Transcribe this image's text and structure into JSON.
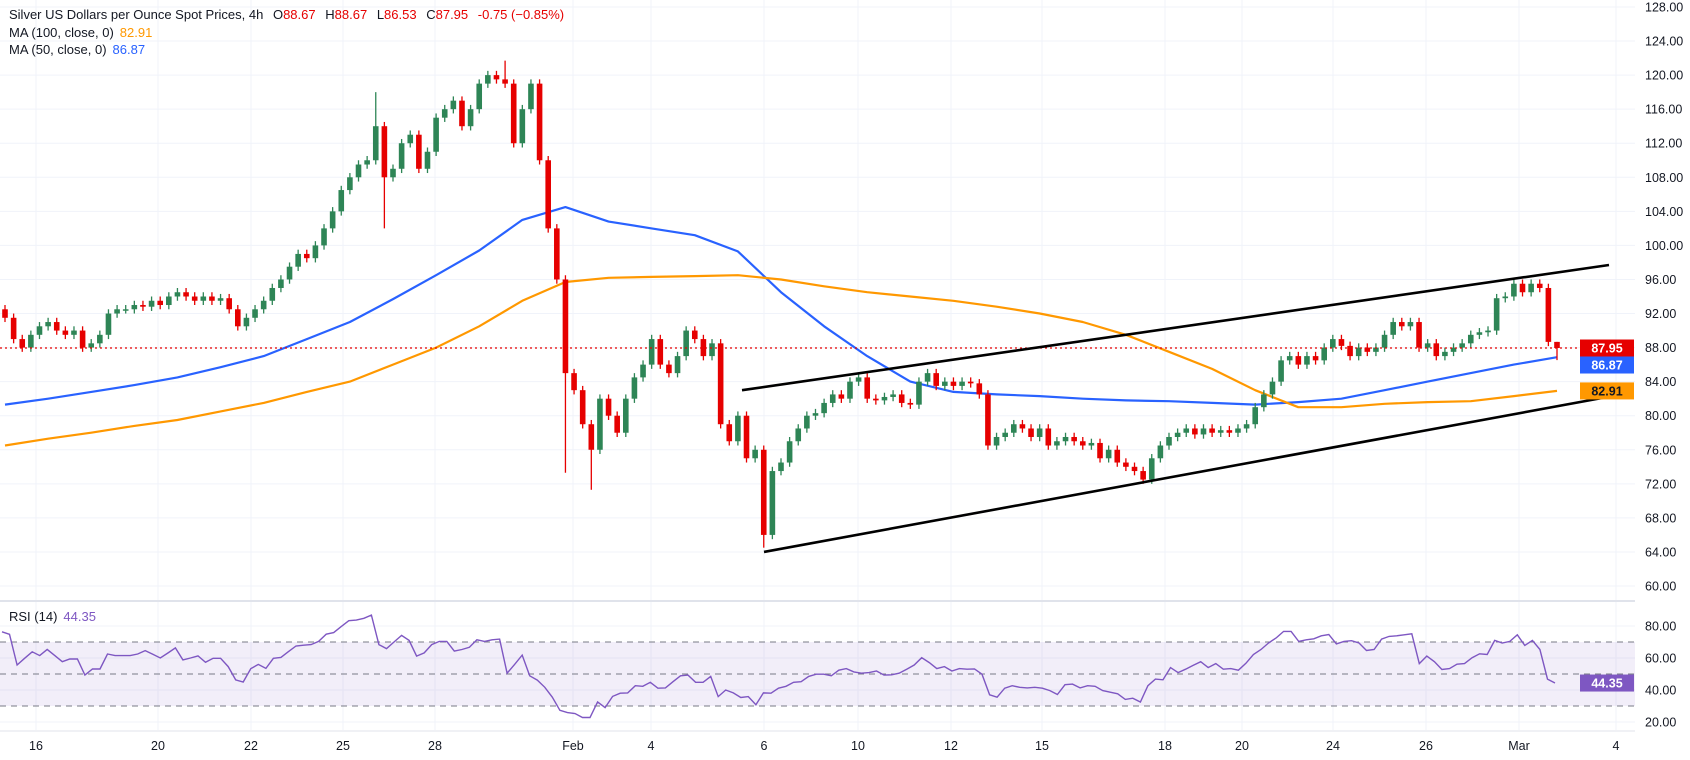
{
  "legend": {
    "title": "Silver US Dollars per Ounce Spot Prices, 4h",
    "o_label": "O",
    "o_value": "88.67",
    "h_label": "H",
    "h_value": "88.67",
    "l_label": "L",
    "l_value": "86.53",
    "c_label": "C",
    "c_value": "87.95",
    "change": "-0.75 (−0.85%)",
    "ma100_label": "MA (100, close, 0)",
    "ma100_value": "82.91",
    "ma50_label": "MA (50, close, 0)",
    "ma50_value": "86.87",
    "rsi_label": "RSI (14)",
    "rsi_value": "44.35"
  },
  "colors": {
    "up": "#2e8556",
    "down": "#e60000",
    "ma50": "#2962ff",
    "ma100": "#ff9800",
    "rsi": "#7e57c2",
    "trendline": "#000000",
    "grid": "#f0f3fa"
  },
  "chart_data": [
    {
      "type": "candlestick",
      "title": "Silver US Dollars per Ounce Spot Prices, 4h",
      "ylim": [
        60,
        128
      ],
      "y_ticks": [
        "60.00",
        "64.00",
        "68.00",
        "72.00",
        "76.00",
        "80.00",
        "84.00",
        "88.00",
        "92.00",
        "96.00",
        "100.00",
        "104.00",
        "108.00",
        "112.00",
        "116.00",
        "120.00",
        "124.00",
        "128.00"
      ],
      "x_ticks": [
        "16",
        "20",
        "22",
        "25",
        "28",
        "Feb",
        "4",
        "6",
        "10",
        "12",
        "15",
        "18",
        "20",
        "24",
        "26",
        "Mar",
        "4"
      ],
      "grid": true,
      "first_open": 92.5,
      "closes": [
        91.5,
        89,
        88,
        89.5,
        90.5,
        91,
        90,
        89.5,
        90,
        88,
        88.5,
        89.5,
        92,
        92.5,
        92.5,
        93,
        92.8,
        93.5,
        93,
        94,
        94.5,
        94,
        93.5,
        94,
        93.5,
        93.8,
        92.5,
        90.5,
        91.5,
        92.5,
        93.5,
        95,
        96,
        97.5,
        99,
        98.5,
        100,
        102,
        104,
        106.5,
        108,
        109.5,
        110,
        114,
        108,
        109,
        112,
        113,
        109,
        111,
        115,
        116,
        117,
        114,
        116,
        119,
        120,
        119.5,
        119,
        112,
        116,
        119,
        110,
        102,
        96,
        85,
        83,
        79,
        76,
        82,
        80,
        78,
        82,
        84.5,
        86,
        89,
        86,
        85,
        87,
        90,
        89,
        87,
        88.5,
        79,
        77,
        80,
        75,
        76,
        66,
        73.5,
        74.5,
        77,
        78.5,
        80,
        80.3,
        81.5,
        82.5,
        82,
        84,
        84.5,
        82,
        81.8,
        82.2,
        82.5,
        81.5,
        81.3,
        84,
        85,
        83.5,
        84,
        83.5,
        84,
        83.8,
        82.5,
        76.5,
        77.5,
        78,
        79,
        78.5,
        77.5,
        78.5,
        76.5,
        77,
        77.5,
        77,
        76.5,
        76.8,
        75,
        76,
        74.5,
        74,
        73.5,
        72.5,
        75,
        76.5,
        77.5,
        78,
        78.5,
        77.8,
        78.5,
        78,
        78.3,
        78,
        78.5,
        79,
        81,
        82.5,
        84,
        86.5,
        87,
        86,
        87,
        86.5,
        88,
        89,
        88.2,
        87,
        88,
        87.5,
        88,
        89.5,
        91,
        90.5,
        91,
        88,
        88.5,
        87,
        87.5,
        88,
        88.5,
        89.5,
        89.8,
        90,
        93.8,
        94,
        95.5,
        94.5,
        95.5,
        95,
        88.67,
        87.95
      ],
      "extremes": [
        {
          "candle": 43,
          "high": 118
        },
        {
          "candle": 44,
          "low": 102
        },
        {
          "candle": 58,
          "high": 121.7
        },
        {
          "candle": 65,
          "low": 73.3
        },
        {
          "candle": 68,
          "low": 71.3
        },
        {
          "candle": 88,
          "low": 64.5
        },
        {
          "candle": 180,
          "high": 88.67,
          "low": 86.53
        }
      ],
      "last_close": 87.95,
      "series": [
        {
          "name": "MA (50, close, 0)",
          "last": 86.87,
          "values": [
            81.3,
            82,
            82.8,
            83.6,
            84.5,
            85.7,
            87,
            89,
            91,
            93.7,
            96.5,
            99.4,
            103,
            104.5,
            102.8,
            102,
            101.2,
            99.3,
            94.5,
            90.5,
            87,
            84,
            82.8,
            82.5,
            82.3,
            82,
            81.8,
            81.7,
            81.5,
            81.3,
            81.6,
            82,
            83,
            84,
            85,
            86,
            86.87
          ]
        },
        {
          "name": "MA (100, close, 0)",
          "last": 82.91,
          "values": [
            76.5,
            77.3,
            78,
            78.8,
            79.5,
            80.5,
            81.5,
            82.8,
            84,
            86,
            88,
            90.5,
            93.5,
            95.7,
            96.2,
            96.3,
            96.4,
            96.5,
            96,
            95.2,
            94.5,
            94,
            93.5,
            92.8,
            92,
            91,
            89.5,
            87.5,
            85.5,
            83,
            81,
            81,
            81.4,
            81.6,
            81.7,
            82.3,
            82.91
          ]
        }
      ],
      "trendlines": [
        {
          "from": 83.0,
          "to": 97.7
        },
        {
          "from": 64.0,
          "to": 82.4
        }
      ]
    },
    {
      "type": "line",
      "title": "RSI (14)",
      "ylim": [
        20,
        80
      ],
      "y_ticks": [
        "20.00",
        "40.00",
        "60.00",
        "80.00"
      ],
      "bands": [
        30,
        50,
        70
      ],
      "last": 44.35,
      "values": [
        76.4,
        74.8,
        55.6,
        59.8,
        63.9,
        61.5,
        65.4,
        61.5,
        57.7,
        59.4,
        59.4,
        49.4,
        53.1,
        53.1,
        62.5,
        61.5,
        61.5,
        61.5,
        62.5,
        64.6,
        62.3,
        60,
        63.1,
        66.3,
        58.8,
        60,
        61.3,
        57.3,
        59.8,
        59.8,
        54.6,
        46.3,
        45,
        53.3,
        56,
        53.5,
        59.8,
        60.4,
        64,
        67.5,
        68,
        68.4,
        70.4,
        74.9,
        75.9,
        79.6,
        83.3,
        83.7,
        84.8,
        86.8,
        68.4,
        65.9,
        70,
        74.1,
        71,
        61.2,
        63.2,
        68.4,
        70.4,
        70.4,
        64.3,
        65.3,
        66.7,
        71.4,
        70.4,
        71.4,
        71.8,
        50.5,
        56,
        61.8,
        48.9,
        46.2,
        41.7,
        35.5,
        27.3,
        25.9,
        25.3,
        22.8,
        22.8,
        32.5,
        29,
        36,
        38,
        38.2,
        42.7,
        42.3,
        44.8,
        41.1,
        41.3,
        45.2,
        48.9,
        49.3,
        44.8,
        44.8,
        48.5,
        35.9,
        40,
        38.2,
        35.3,
        35.9,
        30.8,
        38.2,
        38,
        41.1,
        42.3,
        44.8,
        45.2,
        48.5,
        49.9,
        49.9,
        48.9,
        52.4,
        53.4,
        51.3,
        50.5,
        50.9,
        51.9,
        49.3,
        49.5,
        50.5,
        53,
        55.6,
        60.2,
        57.1,
        53.4,
        54.6,
        51.9,
        53.4,
        53,
        53.2,
        49.9,
        37,
        35.5,
        41.1,
        42.7,
        41.7,
        41.3,
        41.7,
        41.1,
        39.6,
        37.2,
        43.3,
        43.7,
        41.3,
        42.7,
        42.3,
        39.6,
        38.6,
        37.6,
        34.1,
        34.9,
        32.5,
        42.7,
        46.8,
        46.4,
        54,
        50.9,
        53,
        55.4,
        57.7,
        54,
        56.5,
        53,
        53.4,
        52.4,
        56.7,
        62.2,
        65.3,
        69.4,
        72.5,
        76.6,
        76.6,
        70.4,
        71.4,
        72,
        73.9,
        74.7,
        68.8,
        70.4,
        70.8,
        69.4,
        64.7,
        65.3,
        71.8,
        73.5,
        73.9,
        74.5,
        75.1,
        56.5,
        61.2,
        57.7,
        52.8,
        53.4,
        56.1,
        56.5,
        60.2,
        62.6,
        62.2,
        71,
        69.4,
        70.4,
        74.5,
        67.9,
        71,
        65.3,
        46.8,
        44.35
      ]
    }
  ]
}
